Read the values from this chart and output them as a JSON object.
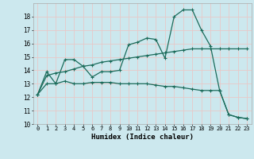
{
  "xlabel": "Humidex (Indice chaleur)",
  "bg_color": "#cce8ee",
  "grid_color": "#e8c8c8",
  "line_color": "#1a6b5a",
  "xlim": [
    -0.5,
    23.5
  ],
  "ylim": [
    10,
    19
  ],
  "xticks": [
    0,
    1,
    2,
    3,
    4,
    5,
    6,
    7,
    8,
    9,
    10,
    11,
    12,
    13,
    14,
    15,
    16,
    17,
    18,
    19,
    20,
    21,
    22,
    23
  ],
  "yticks": [
    10,
    11,
    12,
    13,
    14,
    15,
    16,
    17,
    18
  ],
  "line1_x": [
    0,
    1,
    2,
    3,
    4,
    5,
    6,
    7,
    8,
    9,
    10,
    11,
    12,
    13,
    14,
    15,
    16,
    17,
    18,
    19,
    20,
    21,
    22,
    23
  ],
  "line1_y": [
    12.2,
    13.9,
    13.0,
    14.8,
    14.8,
    14.3,
    13.5,
    13.9,
    13.9,
    14.0,
    15.9,
    16.1,
    16.4,
    16.3,
    14.9,
    18.0,
    18.5,
    18.5,
    17.0,
    15.8,
    12.5,
    10.7,
    10.5,
    10.4
  ],
  "line2_x": [
    0,
    1,
    2,
    3,
    4,
    5,
    6,
    7,
    8,
    9,
    10,
    11,
    12,
    13,
    14,
    15,
    16,
    17,
    18,
    19,
    20,
    21,
    22,
    23
  ],
  "line2_y": [
    12.2,
    13.0,
    13.0,
    13.2,
    13.0,
    13.0,
    13.1,
    13.1,
    13.1,
    13.0,
    13.0,
    13.0,
    13.0,
    12.9,
    12.8,
    12.8,
    12.7,
    12.6,
    12.5,
    12.5,
    12.5,
    10.7,
    10.5,
    10.4
  ],
  "line3_x": [
    0,
    1,
    2,
    3,
    4,
    5,
    6,
    7,
    8,
    9,
    10,
    11,
    12,
    13,
    14,
    15,
    16,
    17,
    18,
    19,
    20,
    21,
    22,
    23
  ],
  "line3_y": [
    12.2,
    13.6,
    13.8,
    13.9,
    14.1,
    14.3,
    14.4,
    14.6,
    14.7,
    14.8,
    14.9,
    15.0,
    15.1,
    15.2,
    15.3,
    15.4,
    15.5,
    15.6,
    15.6,
    15.6,
    15.6,
    15.6,
    15.6,
    15.6
  ]
}
